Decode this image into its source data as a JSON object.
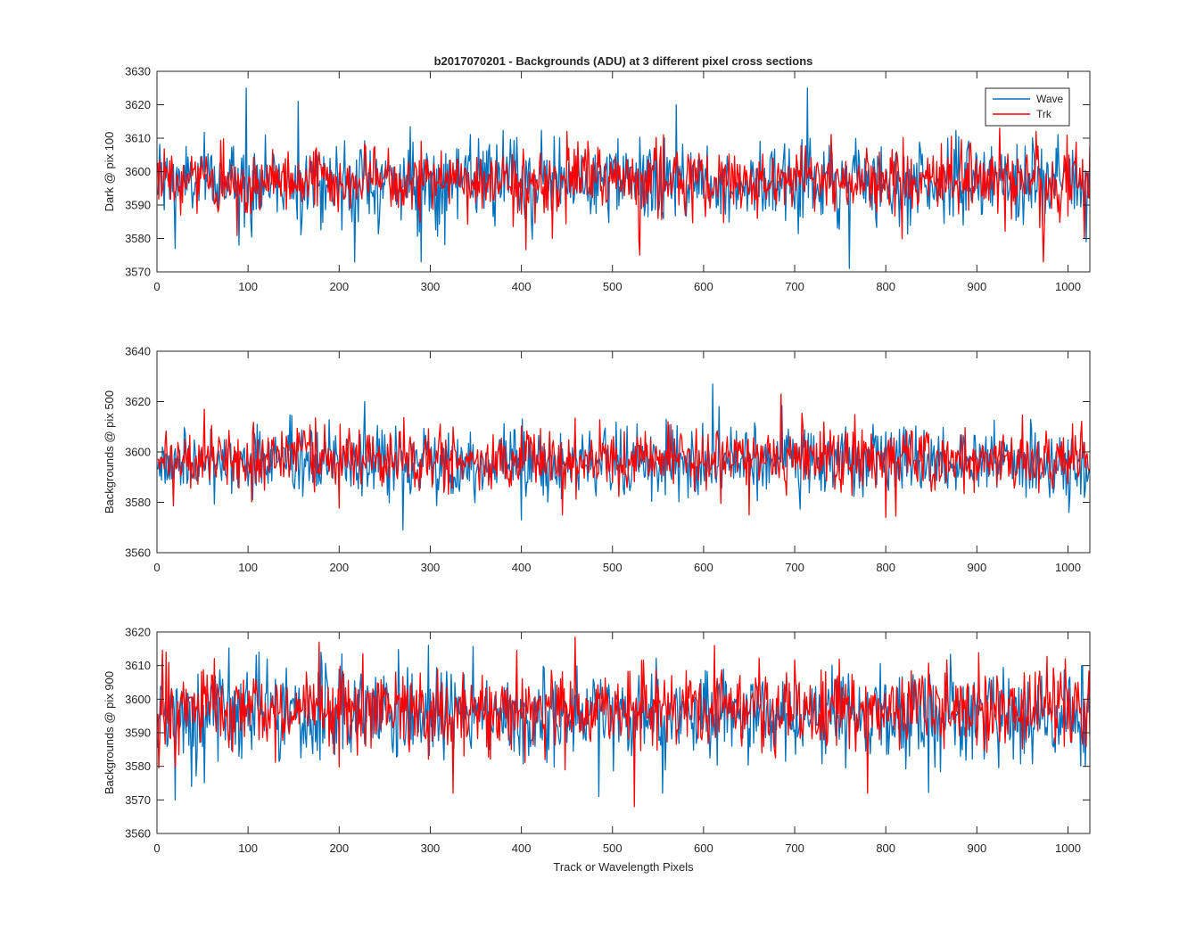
{
  "figure": {
    "title": "b2017070201 - Backgrounds (ADU) at 3 different pixel cross sections",
    "xlabel": "Track or Wavelength Pixels"
  },
  "legend": {
    "placement": "top-right of first panel",
    "entries": [
      "Wave",
      "Trk"
    ]
  },
  "colors": {
    "Wave": "#0072BD",
    "Trk": "#FF0000",
    "axes": "#262626"
  },
  "chart_data": [
    {
      "type": "line",
      "ylabel": "Dark @ pix 100",
      "xlim": [
        0,
        1024
      ],
      "ylim": [
        3570,
        3630
      ],
      "xticks": [
        0,
        100,
        200,
        300,
        400,
        500,
        600,
        700,
        800,
        900,
        1000
      ],
      "yticks": [
        3570,
        3580,
        3590,
        3600,
        3610,
        3620,
        3630
      ],
      "grid": false,
      "series": [
        {
          "name": "Wave",
          "x_range": [
            1,
            1024
          ],
          "y_mean": 3597,
          "y_spread": 6,
          "peaks": [
            [
              98,
              3625
            ],
            [
              155,
              3621
            ],
            [
              570,
              3620
            ],
            [
              714,
              3625
            ],
            [
              217,
              3573
            ],
            [
              290,
              3573
            ],
            [
              760,
              3571
            ],
            [
              20,
              3577
            ],
            [
              90,
              3578
            ],
            [
              1020,
              3579
            ]
          ]
        },
        {
          "name": "Trk",
          "x_range": [
            1,
            1024
          ],
          "y_mean": 3597,
          "y_spread": 5,
          "peaks": [
            [
              1018,
              3610
            ],
            [
              1018,
              3580
            ],
            [
              973,
              3573
            ],
            [
              530,
              3575
            ],
            [
              925,
              3613
            ],
            [
              600,
              3595
            ],
            [
              965,
              3612
            ],
            [
              450,
              3612
            ]
          ]
        }
      ]
    },
    {
      "type": "line",
      "ylabel": "Backgrounds @ pix 500",
      "xlim": [
        0,
        1024
      ],
      "ylim": [
        3560,
        3640
      ],
      "xticks": [
        0,
        100,
        200,
        300,
        400,
        500,
        600,
        700,
        800,
        900,
        1000
      ],
      "yticks": [
        3560,
        3580,
        3600,
        3620,
        3640
      ],
      "grid": false,
      "series": [
        {
          "name": "Wave",
          "x_range": [
            1,
            1024
          ],
          "y_mean": 3596,
          "y_spread": 7,
          "peaks": [
            [
              610,
              3627
            ],
            [
              228,
              3620
            ],
            [
              270,
              3569
            ],
            [
              617,
              3618
            ],
            [
              400,
              3573
            ]
          ]
        },
        {
          "name": "Trk",
          "x_range": [
            1,
            1024
          ],
          "y_mean": 3597,
          "y_spread": 6,
          "peaks": [
            [
              685,
              3623
            ],
            [
              52,
              3617
            ],
            [
              650,
              3575
            ],
            [
              800,
              3574
            ],
            [
              445,
              3575
            ]
          ]
        }
      ]
    },
    {
      "type": "line",
      "ylabel": "Backgrounds @ pix 900",
      "xlim": [
        0,
        1024
      ],
      "ylim": [
        3560,
        3620
      ],
      "xticks": [
        0,
        100,
        200,
        300,
        400,
        500,
        600,
        700,
        800,
        900,
        1000
      ],
      "yticks": [
        3560,
        3570,
        3580,
        3590,
        3600,
        3610,
        3620
      ],
      "grid": false,
      "series": [
        {
          "name": "Wave",
          "x_range": [
            1,
            1024
          ],
          "y_mean": 3595,
          "y_spread": 7,
          "peaks": [
            [
              20,
              3570
            ],
            [
              38,
              3574
            ],
            [
              485,
              3571
            ],
            [
              555,
              3572
            ],
            [
              180,
              3614
            ],
            [
              1015,
              3610
            ]
          ]
        },
        {
          "name": "Trk",
          "x_range": [
            1,
            1024
          ],
          "y_mean": 3597,
          "y_spread": 6,
          "peaks": [
            [
              524,
              3568
            ],
            [
              325,
              3572
            ],
            [
              178,
              3617
            ],
            [
              612,
              3616
            ],
            [
              780,
              3572
            ],
            [
              10,
              3614
            ]
          ]
        }
      ]
    }
  ]
}
